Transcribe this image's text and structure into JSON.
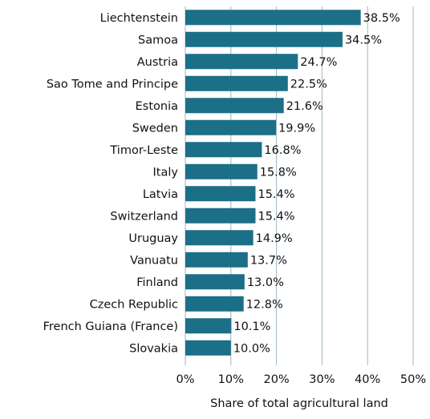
{
  "chart_data": {
    "type": "bar",
    "orientation": "horizontal",
    "x_label": "Share of total agricultural land",
    "categories": [
      "Liechtenstein",
      "Samoa",
      "Austria",
      "Sao Tome and Principe",
      "Estonia",
      "Sweden",
      "Timor-Leste",
      "Italy",
      "Latvia",
      "Switzerland",
      "Uruguay",
      "Vanuatu",
      "Finland",
      "Czech Republic",
      "French Guiana (France)",
      "Slovakia"
    ],
    "values": [
      38.5,
      34.5,
      24.7,
      22.5,
      21.6,
      19.9,
      16.8,
      15.8,
      15.4,
      15.4,
      14.9,
      13.7,
      13.0,
      12.8,
      10.1,
      10.0
    ],
    "value_labels": [
      "38.5%",
      "34.5%",
      "24.7%",
      "22.5%",
      "21.6%",
      "19.9%",
      "16.8%",
      "15.8%",
      "15.4%",
      "15.4%",
      "14.9%",
      "13.7%",
      "13.0%",
      "12.8%",
      "10.1%",
      "10.0%"
    ],
    "color": "#1b6f87",
    "xlim": [
      0,
      50
    ],
    "xticks": [
      {
        "value": 0,
        "label": "0%"
      },
      {
        "value": 10,
        "label": "10%"
      },
      {
        "value": 20,
        "label": "20%"
      },
      {
        "value": 30,
        "label": "30%"
      },
      {
        "value": 40,
        "label": "40%"
      },
      {
        "value": 50,
        "label": "50%"
      }
    ],
    "grid": true
  }
}
